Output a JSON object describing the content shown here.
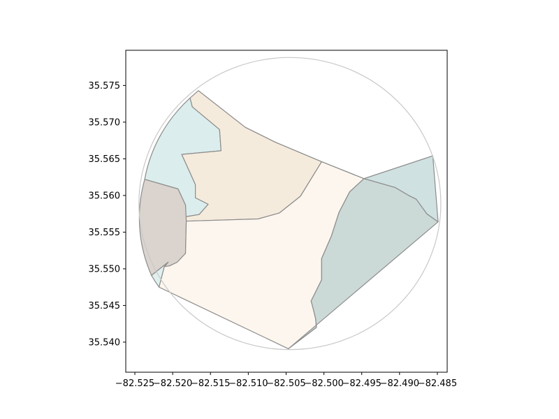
{
  "chart_data": {
    "type": "map",
    "title": "",
    "xlabel": "",
    "ylabel": "",
    "xlim": [
      -82.5262,
      -82.4837
    ],
    "ylim": [
      35.5359,
      35.5798
    ],
    "x_ticks": [
      -82.525,
      -82.52,
      -82.515,
      -82.51,
      -82.505,
      -82.5,
      -82.495,
      -82.49,
      -82.485
    ],
    "x_tick_labels": [
      "−82.525",
      "−82.520",
      "−82.515",
      "−82.510",
      "−82.505",
      "−82.500",
      "−82.495",
      "−82.490",
      "−82.485"
    ],
    "y_ticks": [
      35.54,
      35.545,
      35.55,
      35.555,
      35.56,
      35.565,
      35.57,
      35.575
    ],
    "y_tick_labels": [
      "35.540",
      "35.545",
      "35.550",
      "35.555",
      "35.560",
      "35.565",
      "35.570",
      "35.575"
    ],
    "circle": {
      "center": [
        -82.5045,
        35.5589
      ],
      "radius_x": 0.01996,
      "radius_y": 0.01992,
      "stroke": "#c8c8c8"
    },
    "regions": [
      {
        "id": "north",
        "fill": "#fbfcfc",
        "coords": [
          [
            -82.5166,
            35.5743
          ],
          [
            -82.5104,
            35.5693
          ],
          [
            -82.5065,
            35.5673
          ],
          [
            -82.5003,
            35.5646
          ],
          [
            -82.4947,
            35.5623
          ],
          [
            -82.4856,
            35.5654
          ]
        ],
        "arc_close": true
      },
      {
        "id": "northwest",
        "fill": "#dbedec",
        "coords": [
          [
            -82.5177,
            35.5733
          ],
          [
            -82.5174,
            35.5721
          ],
          [
            -82.5138,
            35.569
          ],
          [
            -82.5136,
            35.5661
          ],
          [
            -82.5188,
            35.5656
          ],
          [
            -82.517,
            35.5615
          ],
          [
            -82.517,
            35.5597
          ],
          [
            -82.5153,
            35.5588
          ],
          [
            -82.5165,
            35.5574
          ],
          [
            -82.5183,
            35.5571
          ],
          [
            -82.5183,
            35.5587
          ],
          [
            -82.5193,
            35.5609
          ],
          [
            -82.5237,
            35.5622
          ]
        ],
        "arc_close": true
      },
      {
        "id": "north-central",
        "fill": "#f5ebdd",
        "coords": [
          [
            -82.5166,
            35.5743
          ],
          [
            -82.5104,
            35.5693
          ],
          [
            -82.5065,
            35.5673
          ],
          [
            -82.5003,
            35.5646
          ],
          [
            -82.5031,
            35.5599
          ],
          [
            -82.5059,
            35.5576
          ],
          [
            -82.5087,
            35.5568
          ],
          [
            -82.5182,
            35.5565
          ],
          [
            -82.5183,
            35.5571
          ],
          [
            -82.5165,
            35.5574
          ],
          [
            -82.5153,
            35.5588
          ],
          [
            -82.517,
            35.5597
          ],
          [
            -82.517,
            35.5615
          ],
          [
            -82.5188,
            35.5656
          ],
          [
            -82.5136,
            35.5661
          ],
          [
            -82.5138,
            35.569
          ],
          [
            -82.5174,
            35.5721
          ],
          [
            -82.5177,
            35.5733
          ]
        ],
        "arc_close": false
      },
      {
        "id": "west",
        "fill": "#dbd4ce",
        "coords": [
          [
            -82.5237,
            35.5622
          ],
          [
            -82.5193,
            35.5609
          ],
          [
            -82.5183,
            35.5587
          ],
          [
            -82.5182,
            35.5565
          ],
          [
            -82.5183,
            35.5521
          ],
          [
            -82.5194,
            35.5509
          ],
          [
            -82.5204,
            35.5504
          ],
          [
            -82.5211,
            35.5503
          ],
          [
            -82.5206,
            35.5509
          ],
          [
            -82.5228,
            35.5491
          ]
        ],
        "arc_close": true
      },
      {
        "id": "west-sliver",
        "fill": "#e0f0ef",
        "coords": [
          [
            -82.5228,
            35.5491
          ],
          [
            -82.5206,
            35.5509
          ],
          [
            -82.5211,
            35.5503
          ],
          [
            -82.5218,
            35.5475
          ]
        ],
        "arc_close": true
      },
      {
        "id": "central",
        "fill": "#fcf6ee",
        "coords": [
          [
            -82.5003,
            35.5646
          ],
          [
            -82.4947,
            35.5623
          ],
          [
            -82.4966,
            35.5605
          ],
          [
            -82.498,
            35.5577
          ],
          [
            -82.499,
            35.5545
          ],
          [
            -82.5003,
            35.5514
          ],
          [
            -82.5003,
            35.5485
          ],
          [
            -82.5017,
            35.5456
          ],
          [
            -82.5015,
            35.5449
          ],
          [
            -82.5011,
            35.5432
          ],
          [
            -82.501,
            35.542
          ],
          [
            -82.5047,
            35.5391
          ],
          [
            -82.5218,
            35.5475
          ],
          [
            -82.5211,
            35.5503
          ],
          [
            -82.5204,
            35.5504
          ],
          [
            -82.5194,
            35.5509
          ],
          [
            -82.5183,
            35.5521
          ],
          [
            -82.5182,
            35.5565
          ],
          [
            -82.5087,
            35.5568
          ],
          [
            -82.5059,
            35.5576
          ],
          [
            -82.5031,
            35.5599
          ]
        ],
        "arc_close": false
      },
      {
        "id": "east-top",
        "fill": "#cfe1e0",
        "coords": [
          [
            -82.4947,
            35.5623
          ],
          [
            -82.4856,
            35.5654
          ],
          [
            -82.4849,
            35.5564
          ],
          [
            -82.4864,
            35.5575
          ],
          [
            -82.4878,
            35.5595
          ],
          [
            -82.4888,
            35.56
          ],
          [
            -82.4906,
            35.5611
          ]
        ],
        "arc_close": false
      },
      {
        "id": "southeast",
        "fill": "#cbd9d7",
        "coords": [
          [
            -82.4947,
            35.5623
          ],
          [
            -82.4906,
            35.5611
          ],
          [
            -82.4888,
            35.56
          ],
          [
            -82.4878,
            35.5595
          ],
          [
            -82.4864,
            35.5575
          ],
          [
            -82.4849,
            35.5564
          ],
          [
            -82.5047,
            35.5391
          ],
          [
            -82.501,
            35.542
          ],
          [
            -82.5011,
            35.5432
          ],
          [
            -82.5015,
            35.5449
          ],
          [
            -82.5017,
            35.5456
          ],
          [
            -82.5003,
            35.5485
          ],
          [
            -82.5003,
            35.5514
          ],
          [
            -82.499,
            35.5545
          ],
          [
            -82.498,
            35.5577
          ],
          [
            -82.4966,
            35.5605
          ]
        ],
        "arc_close": false
      }
    ]
  }
}
